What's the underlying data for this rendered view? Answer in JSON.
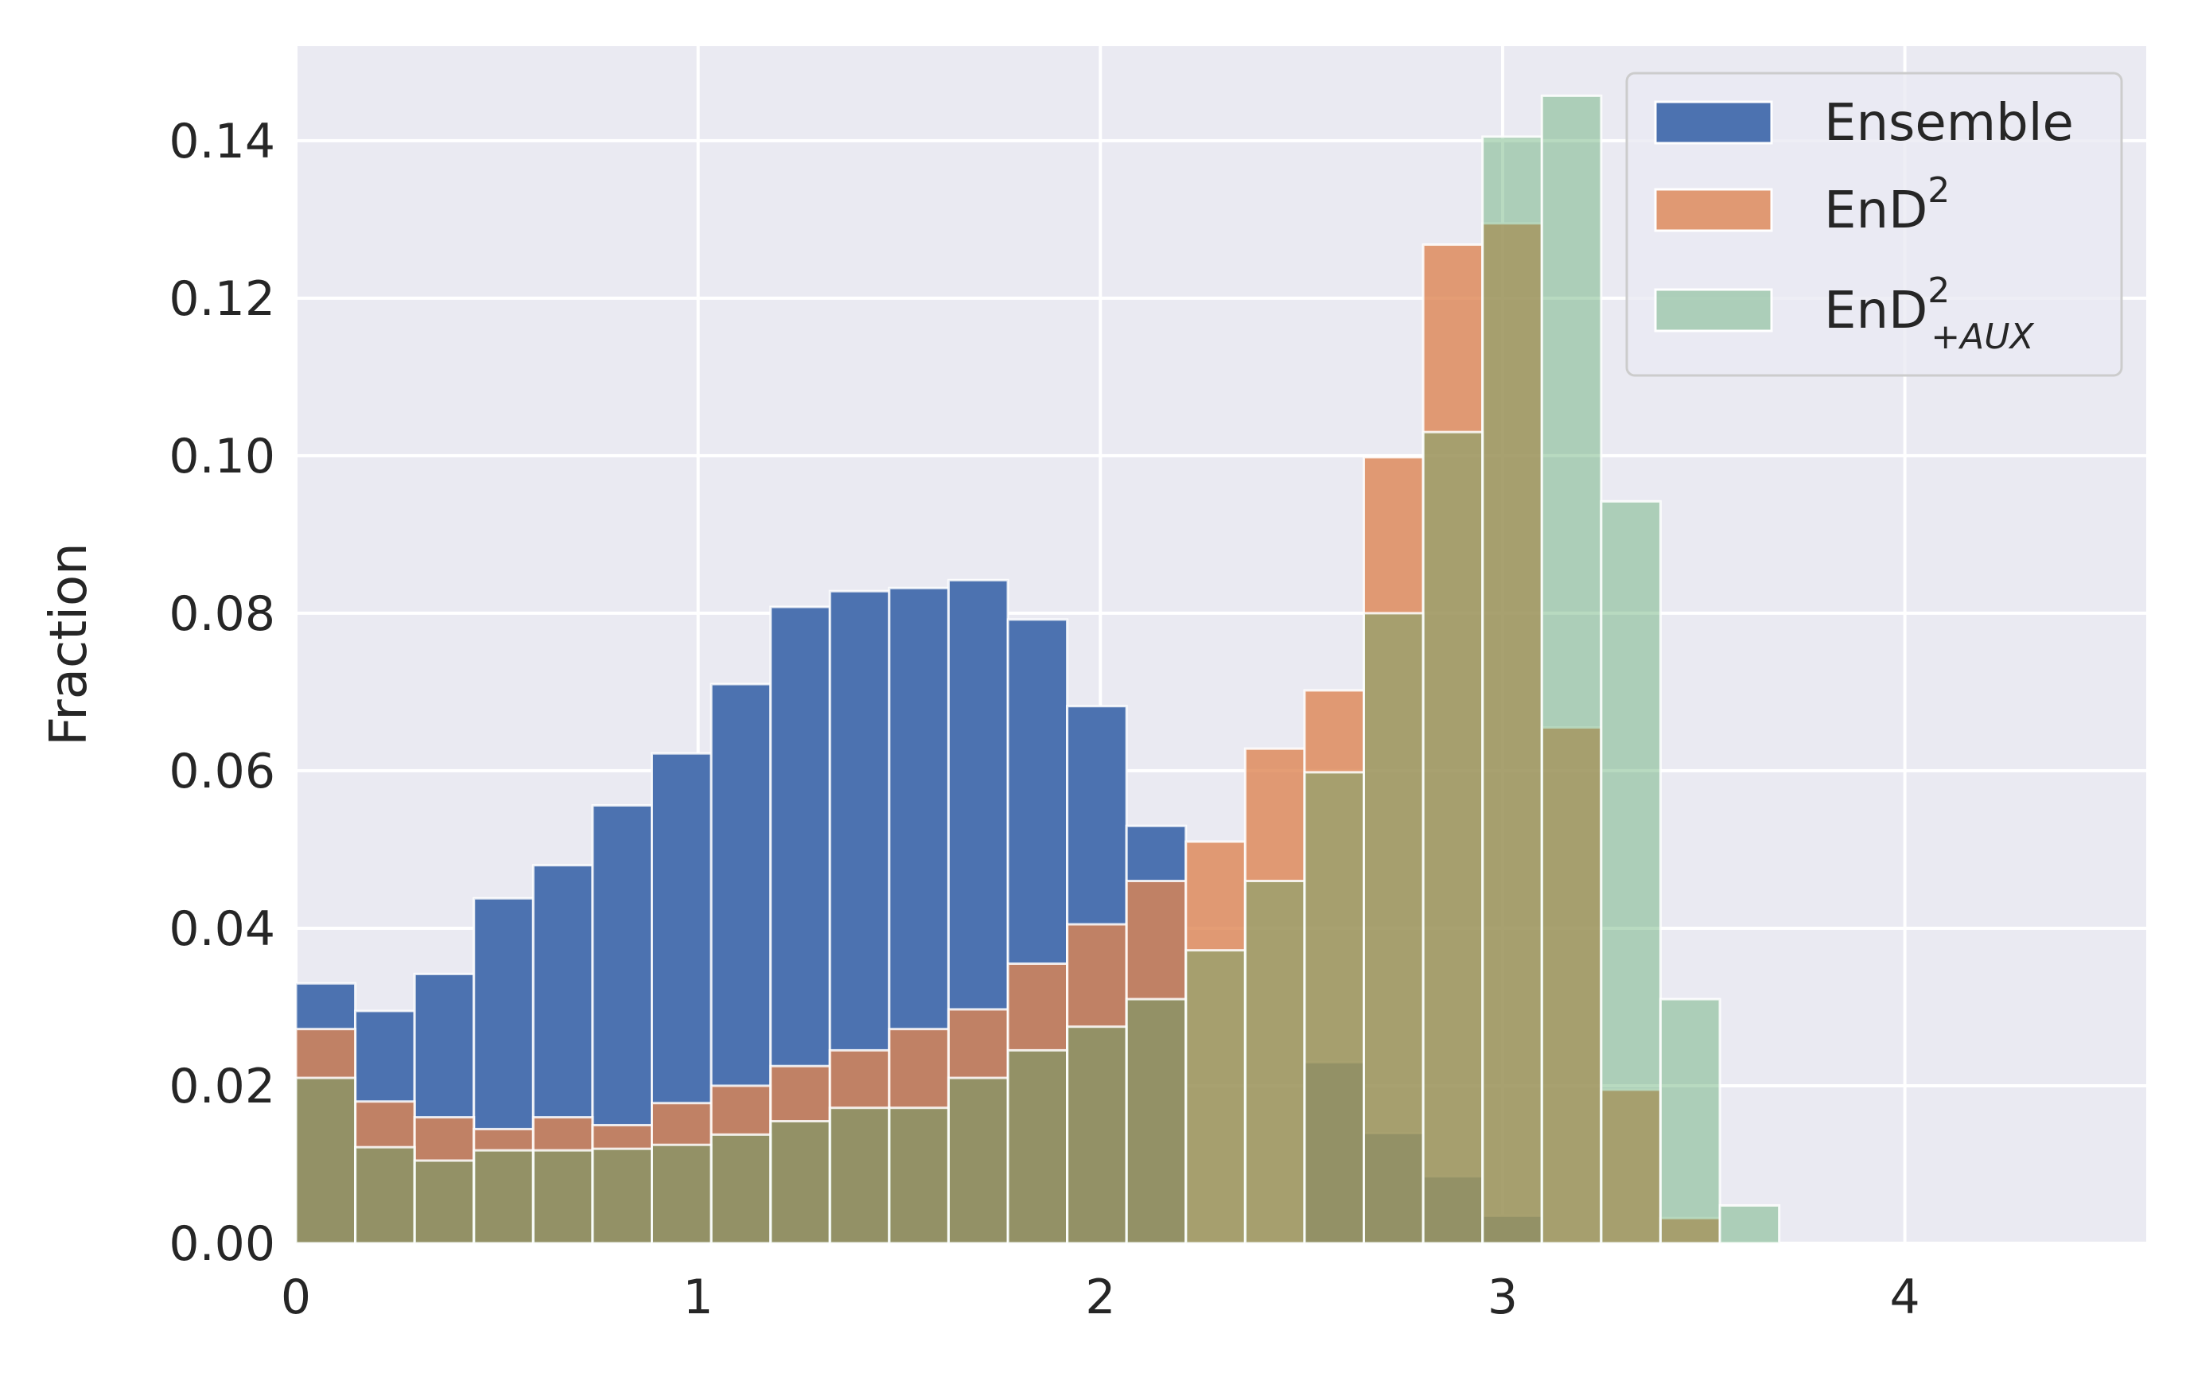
{
  "chart_data": {
    "type": "bar",
    "subtype": "histogram",
    "xlabel": "",
    "ylabel": "Fraction",
    "xlim": [
      0,
      4.6
    ],
    "ylim": [
      0,
      0.152
    ],
    "xticks": [
      0,
      1,
      2,
      3,
      4
    ],
    "xtick_labels": [
      "0",
      "1",
      "2",
      "3",
      "4"
    ],
    "yticks": [
      0,
      0.02,
      0.04,
      0.06,
      0.08,
      0.1,
      0.12,
      0.14
    ],
    "ytick_labels": [
      "0.00",
      "0.02",
      "0.04",
      "0.06",
      "0.08",
      "0.10",
      "0.12",
      "0.14"
    ],
    "grid": true,
    "legend_position": "top-right",
    "bin_width": 0.1475,
    "series": [
      {
        "name": "Ensemble",
        "label_main": "Ensemble",
        "label_sup": "",
        "label_sub": "",
        "color": "#4c72b0",
        "opacity": 1.0,
        "x_start": 0.0,
        "values": [
          0.033,
          0.0295,
          0.0342,
          0.0438,
          0.048,
          0.0556,
          0.0622,
          0.071,
          0.0808,
          0.0828,
          0.0832,
          0.0842,
          0.0792,
          0.0682,
          0.053,
          0.0,
          0.0,
          0.023,
          0.014,
          0.0085,
          0.0035
        ]
      },
      {
        "name": "EnD²",
        "label_main": "EnD",
        "label_sup": "2",
        "label_sub": "",
        "color": "#dd8452",
        "opacity": 0.8,
        "x_start": 0.0,
        "values": [
          0.0272,
          0.018,
          0.016,
          0.0145,
          0.016,
          0.015,
          0.0178,
          0.02,
          0.0225,
          0.0245,
          0.0272,
          0.0297,
          0.0355,
          0.0405,
          0.046,
          0.051,
          0.0628,
          0.0702,
          0.0998,
          0.1268,
          0.1295,
          0.0655,
          0.0195,
          0.0032
        ]
      },
      {
        "name": "EnD²₊AUX",
        "label_main": "EnD",
        "label_sup": "2",
        "label_sub": "+AUX",
        "color": "#55a868",
        "opacity": 0.42,
        "x_start": 0.0,
        "values": [
          0.021,
          0.0122,
          0.0105,
          0.0118,
          0.0118,
          0.012,
          0.0125,
          0.0138,
          0.0155,
          0.0172,
          0.0172,
          0.021,
          0.0245,
          0.0275,
          0.031,
          0.0372,
          0.046,
          0.0598,
          0.08,
          0.103,
          0.1405,
          0.1457,
          0.0942,
          0.031,
          0.0048
        ]
      }
    ]
  }
}
